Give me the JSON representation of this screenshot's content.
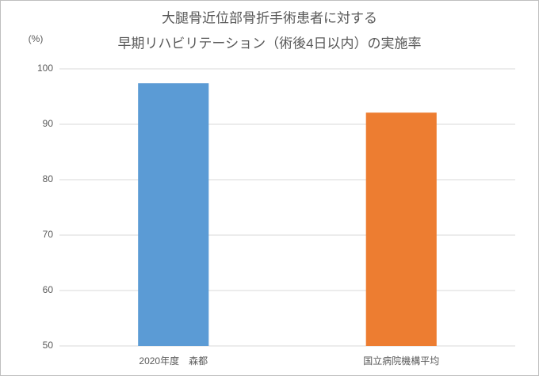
{
  "chart_data": {
    "type": "bar",
    "title": [
      "大腿骨近位部骨折手術患者に対する",
      "早期リハビリテーション（術後4日以内）の実施率"
    ],
    "y_label": "(%)",
    "categories": [
      "2020年度　森都",
      "国立病院機構平均"
    ],
    "values": [
      97.4,
      92.1
    ],
    "colors": [
      "#5b9bd5",
      "#ed7d31"
    ],
    "ylim": [
      50,
      100
    ],
    "yticks": [
      50,
      60,
      70,
      80,
      90,
      100
    ],
    "grid": true
  }
}
